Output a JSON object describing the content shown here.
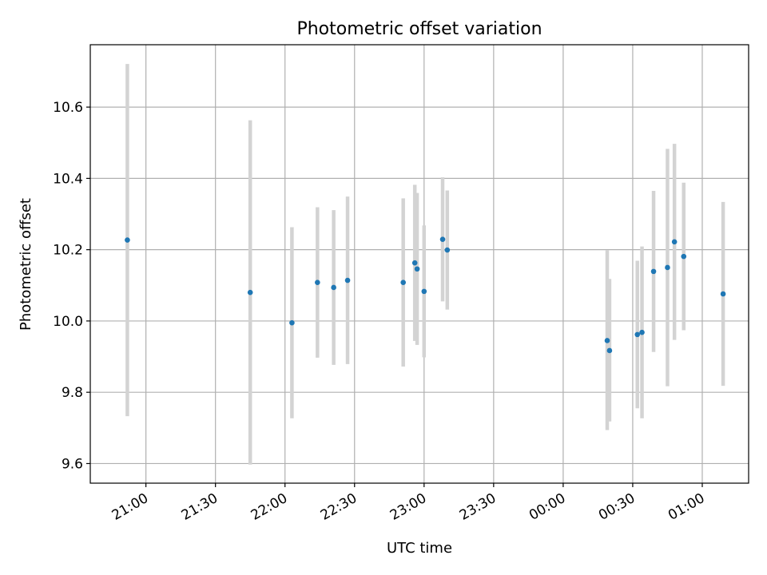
{
  "chart_data": {
    "type": "scatter",
    "title": "Photometric offset variation",
    "xlabel": "UTC time",
    "ylabel": "Photometric offset",
    "grid": true,
    "marker_color": "#1f77b4",
    "errorbar_color": "#d3d3d3",
    "ylim": [
      9.545,
      10.775
    ],
    "yticks": [
      9.6,
      9.8,
      10.0,
      10.2,
      10.4,
      10.6
    ],
    "ytick_labels": [
      "9.6",
      "9.8",
      "10.0",
      "10.2",
      "10.4",
      "10.6"
    ],
    "xlim": [
      "20:36",
      "01:20"
    ],
    "xticks": [
      "21:00",
      "21:30",
      "22:00",
      "22:30",
      "23:00",
      "23:30",
      "00:00",
      "00:30",
      "01:00"
    ],
    "xtick_labels": [
      "21:00",
      "21:30",
      "22:00",
      "22:30",
      "23:00",
      "23:30",
      "00:00",
      "00:30",
      "01:00"
    ],
    "points": [
      {
        "time": "20:52",
        "y": 10.227,
        "ylow": 9.733,
        "yhigh": 10.721
      },
      {
        "time": "21:45",
        "y": 10.08,
        "ylow": 9.597,
        "yhigh": 10.563
      },
      {
        "time": "22:03",
        "y": 9.995,
        "ylow": 9.727,
        "yhigh": 10.263
      },
      {
        "time": "22:14",
        "y": 10.108,
        "ylow": 9.897,
        "yhigh": 10.319
      },
      {
        "time": "22:21",
        "y": 10.094,
        "ylow": 9.877,
        "yhigh": 10.311
      },
      {
        "time": "22:27",
        "y": 10.114,
        "ylow": 9.879,
        "yhigh": 10.349
      },
      {
        "time": "22:51",
        "y": 10.108,
        "ylow": 9.872,
        "yhigh": 10.344
      },
      {
        "time": "22:56",
        "y": 10.163,
        "ylow": 9.944,
        "yhigh": 10.382
      },
      {
        "time": "22:57",
        "y": 10.146,
        "ylow": 9.933,
        "yhigh": 10.359
      },
      {
        "time": "23:00",
        "y": 10.083,
        "ylow": 9.898,
        "yhigh": 10.268
      },
      {
        "time": "23:08",
        "y": 10.229,
        "ylow": 10.055,
        "yhigh": 10.403
      },
      {
        "time": "23:10",
        "y": 10.199,
        "ylow": 10.032,
        "yhigh": 10.366
      },
      {
        "time": "00:19",
        "y": 9.945,
        "ylow": 9.694,
        "yhigh": 10.199
      },
      {
        "time": "00:20",
        "y": 9.917,
        "ylow": 9.718,
        "yhigh": 10.118
      },
      {
        "time": "00:32",
        "y": 9.962,
        "ylow": 9.755,
        "yhigh": 10.169
      },
      {
        "time": "00:34",
        "y": 9.968,
        "ylow": 9.727,
        "yhigh": 10.209
      },
      {
        "time": "00:39",
        "y": 10.139,
        "ylow": 9.913,
        "yhigh": 10.365
      },
      {
        "time": "00:45",
        "y": 10.15,
        "ylow": 9.817,
        "yhigh": 10.483
      },
      {
        "time": "00:48",
        "y": 10.222,
        "ylow": 9.947,
        "yhigh": 10.497
      },
      {
        "time": "00:52",
        "y": 10.181,
        "ylow": 9.974,
        "yhigh": 10.388
      },
      {
        "time": "01:09",
        "y": 10.076,
        "ylow": 9.818,
        "yhigh": 10.334
      }
    ]
  }
}
